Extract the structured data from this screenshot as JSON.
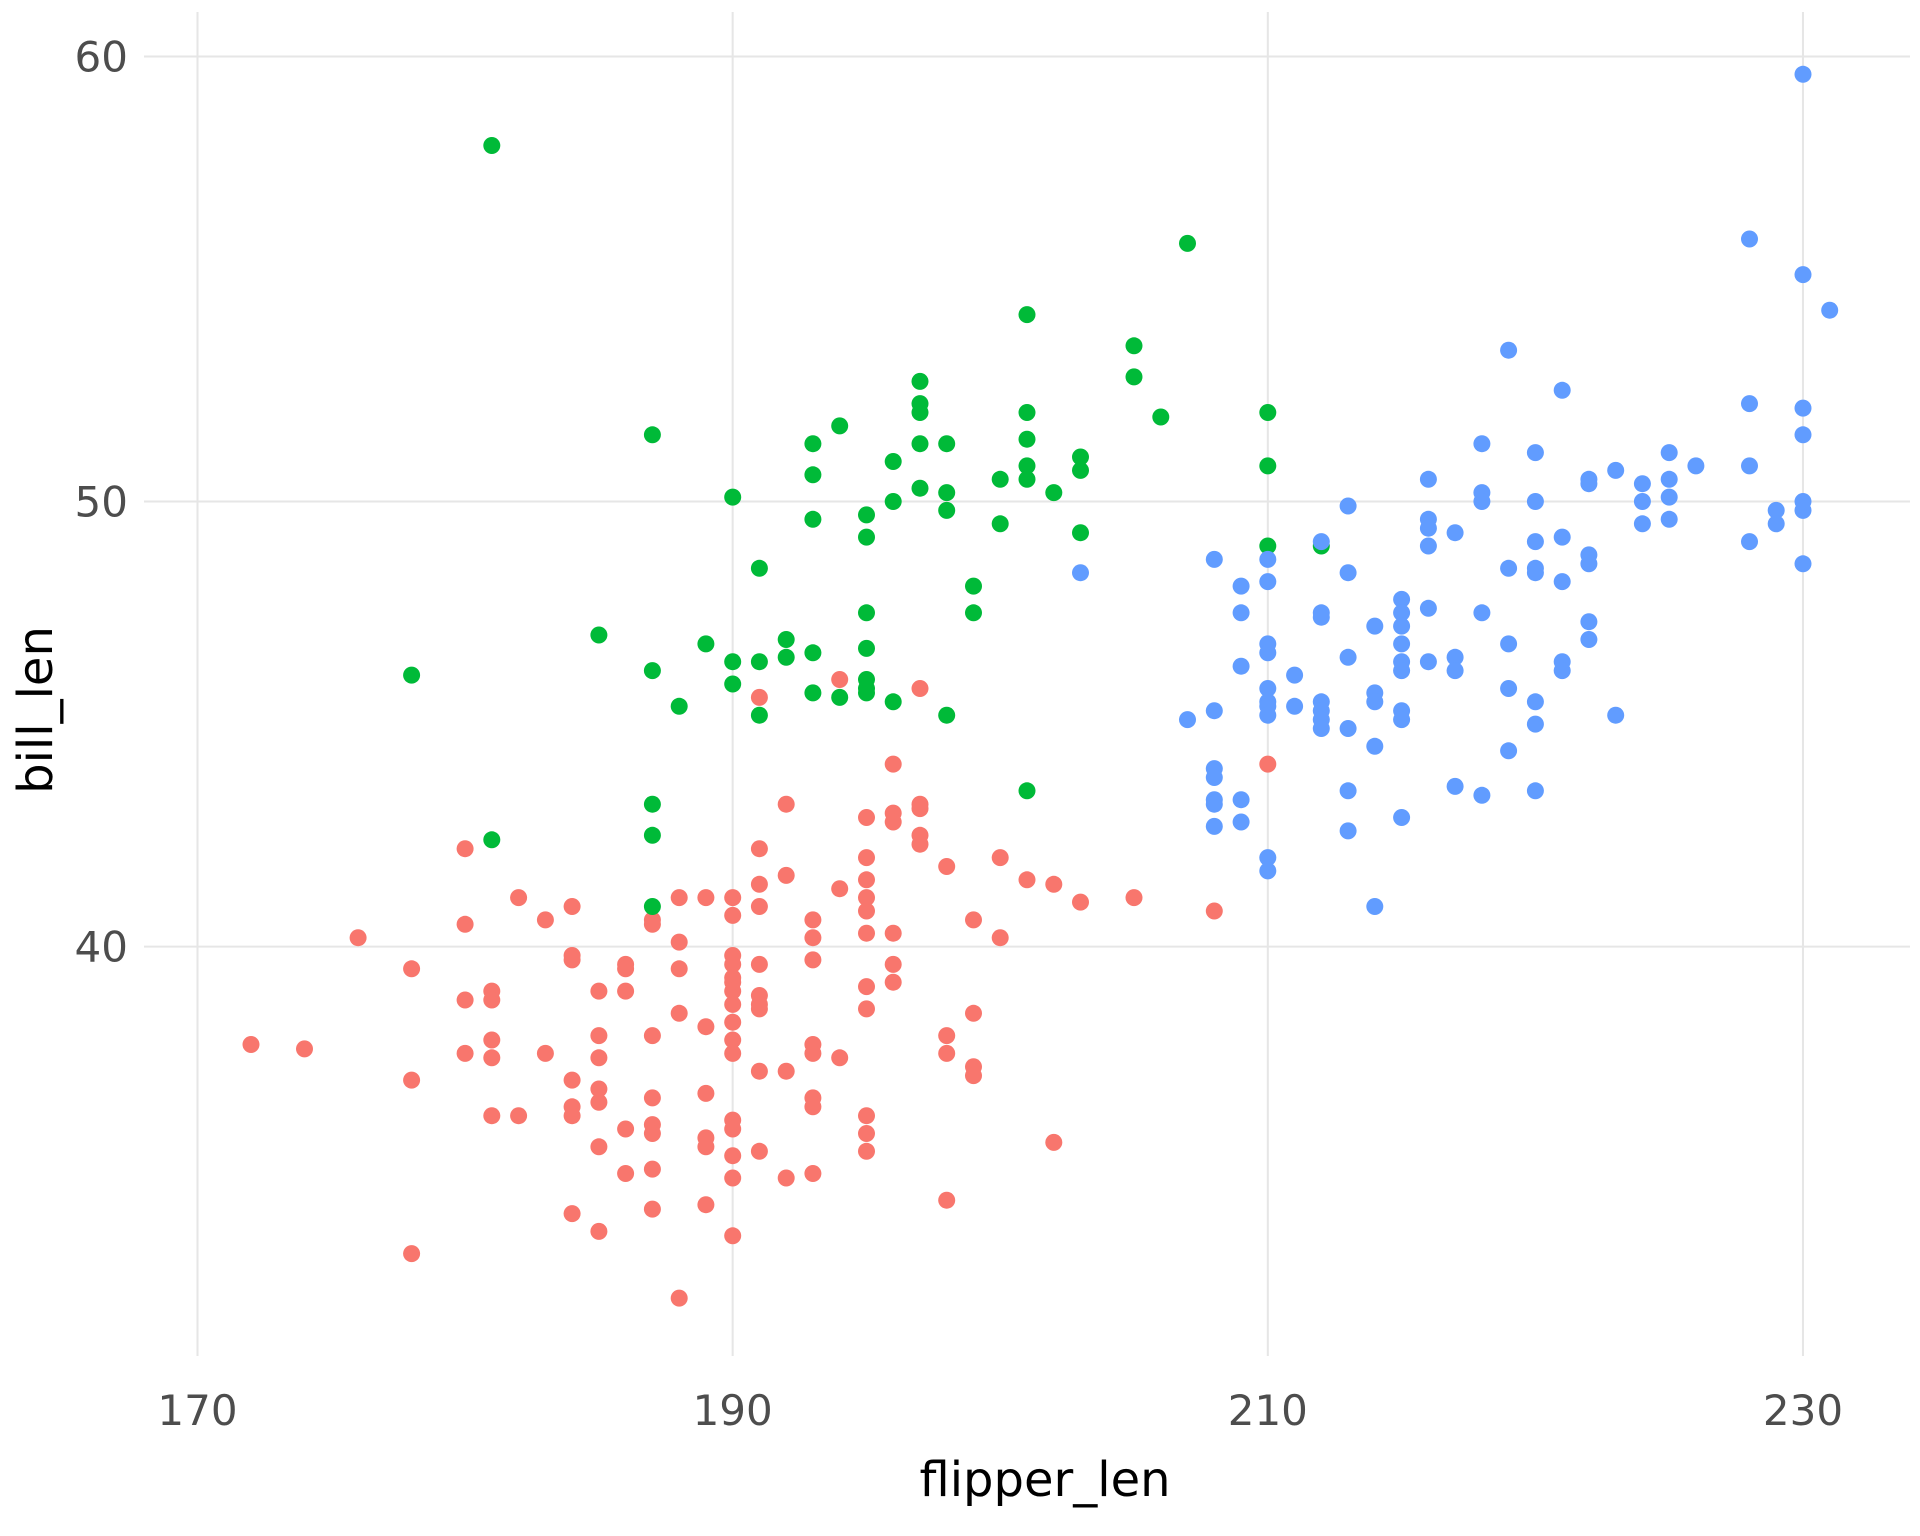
{
  "chart_data": {
    "type": "scatter",
    "title": "",
    "xlabel": "flipper_len",
    "ylabel": "bill_len",
    "xlim": [
      168,
      234
    ],
    "ylim": [
      30.8,
      61
    ],
    "xticks": [
      170,
      190,
      210,
      230
    ],
    "yticks": [
      40,
      50,
      60
    ],
    "xtick_labels": [
      "170",
      "190",
      "210",
      "230"
    ],
    "ytick_labels": [
      "40",
      "50",
      "60"
    ],
    "grid": true,
    "legend": "none",
    "series": [
      {
        "color": "#F8766D",
        "points": [
          [
            172,
            37.8
          ],
          [
            174,
            37.7
          ],
          [
            176,
            40.2
          ],
          [
            178,
            39.5
          ],
          [
            178,
            37.0
          ],
          [
            178,
            33.1
          ],
          [
            180,
            42.2
          ],
          [
            180,
            40.5
          ],
          [
            180,
            38.8
          ],
          [
            180,
            37.6
          ],
          [
            181,
            39.0
          ],
          [
            181,
            38.8
          ],
          [
            181,
            37.9
          ],
          [
            181,
            37.5
          ],
          [
            181,
            36.2
          ],
          [
            182,
            41.1
          ],
          [
            182,
            36.2
          ],
          [
            183,
            40.6
          ],
          [
            183,
            37.6
          ],
          [
            184,
            40.9
          ],
          [
            184,
            39.8
          ],
          [
            184,
            39.7
          ],
          [
            184,
            37.0
          ],
          [
            184,
            36.4
          ],
          [
            184,
            36.2
          ],
          [
            184,
            34.0
          ],
          [
            185,
            39.0
          ],
          [
            185,
            38.0
          ],
          [
            185,
            37.5
          ],
          [
            185,
            36.8
          ],
          [
            185,
            36.5
          ],
          [
            185,
            35.5
          ],
          [
            185,
            33.6
          ],
          [
            186,
            39.6
          ],
          [
            186,
            39.5
          ],
          [
            186,
            39.0
          ],
          [
            186,
            35.9
          ],
          [
            186,
            34.9
          ],
          [
            187,
            40.6
          ],
          [
            187,
            40.5
          ],
          [
            187,
            38.0
          ],
          [
            187,
            36.6
          ],
          [
            187,
            36.0
          ],
          [
            187,
            35.8
          ],
          [
            187,
            35.0
          ],
          [
            187,
            34.1
          ],
          [
            188,
            41.1
          ],
          [
            188,
            40.1
          ],
          [
            188,
            39.5
          ],
          [
            188,
            38.5
          ],
          [
            188,
            32.1
          ],
          [
            189,
            41.1
          ],
          [
            189,
            38.2
          ],
          [
            189,
            36.7
          ],
          [
            189,
            35.7
          ],
          [
            189,
            35.5
          ],
          [
            189,
            34.2
          ],
          [
            190,
            41.1
          ],
          [
            190,
            40.7
          ],
          [
            190,
            39.8
          ],
          [
            190,
            39.6
          ],
          [
            190,
            39.3
          ],
          [
            190,
            39.2
          ],
          [
            190,
            39.0
          ],
          [
            190,
            38.7
          ],
          [
            190,
            38.3
          ],
          [
            190,
            37.9
          ],
          [
            190,
            37.6
          ],
          [
            190,
            36.1
          ],
          [
            190,
            35.9
          ],
          [
            190,
            35.3
          ],
          [
            190,
            34.8
          ],
          [
            190,
            33.5
          ],
          [
            191,
            45.6
          ],
          [
            191,
            42.2
          ],
          [
            191,
            41.4
          ],
          [
            191,
            40.9
          ],
          [
            191,
            39.6
          ],
          [
            191,
            38.9
          ],
          [
            191,
            38.7
          ],
          [
            191,
            38.6
          ],
          [
            191,
            37.2
          ],
          [
            191,
            35.4
          ],
          [
            192,
            43.2
          ],
          [
            192,
            41.6
          ],
          [
            192,
            37.2
          ],
          [
            192,
            34.8
          ],
          [
            193,
            40.6
          ],
          [
            193,
            40.2
          ],
          [
            193,
            39.7
          ],
          [
            193,
            37.8
          ],
          [
            193,
            37.6
          ],
          [
            193,
            36.6
          ],
          [
            193,
            36.4
          ],
          [
            193,
            34.9
          ],
          [
            194,
            46.0
          ],
          [
            194,
            41.3
          ],
          [
            194,
            37.5
          ],
          [
            195,
            42.9
          ],
          [
            195,
            42.0
          ],
          [
            195,
            41.5
          ],
          [
            195,
            41.1
          ],
          [
            195,
            40.8
          ],
          [
            195,
            40.3
          ],
          [
            195,
            39.1
          ],
          [
            195,
            38.6
          ],
          [
            195,
            36.2
          ],
          [
            195,
            35.8
          ],
          [
            195,
            35.4
          ],
          [
            196,
            44.1
          ],
          [
            196,
            43.0
          ],
          [
            196,
            42.8
          ],
          [
            196,
            40.3
          ],
          [
            196,
            39.6
          ],
          [
            196,
            39.2
          ],
          [
            197,
            45.8
          ],
          [
            197,
            43.2
          ],
          [
            197,
            43.1
          ],
          [
            197,
            42.5
          ],
          [
            197,
            42.3
          ],
          [
            198,
            41.8
          ],
          [
            198,
            38.0
          ],
          [
            198,
            37.6
          ],
          [
            198,
            34.3
          ],
          [
            199,
            40.6
          ],
          [
            199,
            38.5
          ],
          [
            199,
            37.3
          ],
          [
            199,
            37.1
          ],
          [
            200,
            42.0
          ],
          [
            200,
            40.2
          ],
          [
            201,
            41.5
          ],
          [
            202,
            41.4
          ],
          [
            202,
            35.6
          ],
          [
            203,
            41.0
          ],
          [
            205,
            41.1
          ],
          [
            208,
            40.8
          ],
          [
            210,
            44.1
          ]
        ]
      },
      {
        "color": "#00BA38",
        "points": [
          [
            178,
            46.1
          ],
          [
            181,
            58.0
          ],
          [
            181,
            42.4
          ],
          [
            185,
            47.0
          ],
          [
            187,
            51.5
          ],
          [
            187,
            46.2
          ],
          [
            187,
            43.2
          ],
          [
            187,
            42.5
          ],
          [
            187,
            40.9
          ],
          [
            188,
            45.4
          ],
          [
            189,
            46.8
          ],
          [
            190,
            50.1
          ],
          [
            190,
            46.4
          ],
          [
            190,
            45.9
          ],
          [
            191,
            48.5
          ],
          [
            191,
            46.4
          ],
          [
            191,
            45.2
          ],
          [
            192,
            46.9
          ],
          [
            192,
            46.5
          ],
          [
            193,
            51.3
          ],
          [
            193,
            50.6
          ],
          [
            193,
            49.6
          ],
          [
            193,
            46.6
          ],
          [
            193,
            45.7
          ],
          [
            194,
            51.7
          ],
          [
            194,
            45.6
          ],
          [
            195,
            49.7
          ],
          [
            195,
            49.2
          ],
          [
            195,
            47.5
          ],
          [
            195,
            46.7
          ],
          [
            195,
            46.0
          ],
          [
            195,
            45.8
          ],
          [
            195,
            45.7
          ],
          [
            196,
            50.9
          ],
          [
            196,
            50.0
          ],
          [
            196,
            45.5
          ],
          [
            197,
            52.7
          ],
          [
            197,
            52.2
          ],
          [
            197,
            52.0
          ],
          [
            197,
            51.3
          ],
          [
            197,
            50.3
          ],
          [
            198,
            51.3
          ],
          [
            198,
            50.2
          ],
          [
            198,
            49.8
          ],
          [
            198,
            45.2
          ],
          [
            199,
            48.1
          ],
          [
            199,
            47.5
          ],
          [
            200,
            50.5
          ],
          [
            200,
            49.5
          ],
          [
            201,
            54.2
          ],
          [
            201,
            52.0
          ],
          [
            201,
            51.4
          ],
          [
            201,
            50.8
          ],
          [
            201,
            50.5
          ],
          [
            201,
            43.5
          ],
          [
            202,
            50.2
          ],
          [
            203,
            51.0
          ],
          [
            203,
            50.7
          ],
          [
            203,
            49.3
          ],
          [
            205,
            53.5
          ],
          [
            205,
            52.8
          ],
          [
            206,
            51.9
          ],
          [
            207,
            55.8
          ],
          [
            210,
            52.0
          ],
          [
            210,
            50.8
          ],
          [
            210,
            49.0
          ],
          [
            212,
            49.0
          ]
        ]
      },
      {
        "color": "#619CFF",
        "points": [
          [
            203,
            48.4
          ],
          [
            207,
            45.1
          ],
          [
            208,
            48.7
          ],
          [
            208,
            45.3
          ],
          [
            208,
            44.0
          ],
          [
            208,
            43.8
          ],
          [
            208,
            43.3
          ],
          [
            208,
            43.2
          ],
          [
            208,
            42.7
          ],
          [
            209,
            48.1
          ],
          [
            209,
            47.5
          ],
          [
            209,
            46.3
          ],
          [
            209,
            43.3
          ],
          [
            209,
            42.8
          ],
          [
            210,
            48.7
          ],
          [
            210,
            48.2
          ],
          [
            210,
            46.8
          ],
          [
            210,
            46.6
          ],
          [
            210,
            45.8
          ],
          [
            210,
            45.5
          ],
          [
            210,
            45.4
          ],
          [
            210,
            45.2
          ],
          [
            210,
            42.0
          ],
          [
            210,
            41.7
          ],
          [
            211,
            46.1
          ],
          [
            211,
            45.4
          ],
          [
            212,
            49.1
          ],
          [
            212,
            47.5
          ],
          [
            212,
            47.4
          ],
          [
            212,
            45.5
          ],
          [
            212,
            45.3
          ],
          [
            212,
            45.1
          ],
          [
            212,
            44.9
          ],
          [
            213,
            49.9
          ],
          [
            213,
            48.4
          ],
          [
            213,
            46.5
          ],
          [
            213,
            44.9
          ],
          [
            213,
            43.5
          ],
          [
            213,
            42.6
          ],
          [
            214,
            47.2
          ],
          [
            214,
            45.7
          ],
          [
            214,
            45.5
          ],
          [
            214,
            44.5
          ],
          [
            214,
            40.9
          ],
          [
            215,
            47.8
          ],
          [
            215,
            47.5
          ],
          [
            215,
            47.2
          ],
          [
            215,
            46.8
          ],
          [
            215,
            46.4
          ],
          [
            215,
            46.2
          ],
          [
            215,
            45.3
          ],
          [
            215,
            45.1
          ],
          [
            215,
            42.9
          ],
          [
            216,
            50.5
          ],
          [
            216,
            49.6
          ],
          [
            216,
            49.4
          ],
          [
            216,
            49.0
          ],
          [
            216,
            47.6
          ],
          [
            216,
            46.4
          ],
          [
            217,
            49.3
          ],
          [
            217,
            46.5
          ],
          [
            217,
            46.2
          ],
          [
            217,
            43.6
          ],
          [
            218,
            51.3
          ],
          [
            218,
            50.2
          ],
          [
            218,
            50.0
          ],
          [
            218,
            47.5
          ],
          [
            218,
            43.4
          ],
          [
            219,
            53.4
          ],
          [
            219,
            48.5
          ],
          [
            219,
            46.8
          ],
          [
            219,
            45.8
          ],
          [
            219,
            44.4
          ],
          [
            220,
            51.1
          ],
          [
            220,
            50.0
          ],
          [
            220,
            49.1
          ],
          [
            220,
            48.5
          ],
          [
            220,
            48.4
          ],
          [
            220,
            45.5
          ],
          [
            220,
            45.0
          ],
          [
            220,
            43.5
          ],
          [
            221,
            52.5
          ],
          [
            221,
            49.2
          ],
          [
            221,
            48.2
          ],
          [
            221,
            46.4
          ],
          [
            221,
            46.2
          ],
          [
            222,
            50.5
          ],
          [
            222,
            50.4
          ],
          [
            222,
            48.8
          ],
          [
            222,
            48.6
          ],
          [
            222,
            47.3
          ],
          [
            222,
            46.9
          ],
          [
            223,
            50.7
          ],
          [
            223,
            45.2
          ],
          [
            224,
            50.4
          ],
          [
            224,
            50.0
          ],
          [
            224,
            49.5
          ],
          [
            225,
            51.1
          ],
          [
            225,
            50.5
          ],
          [
            225,
            50.1
          ],
          [
            225,
            49.6
          ],
          [
            226,
            50.8
          ],
          [
            228,
            55.9
          ],
          [
            228,
            52.2
          ],
          [
            228,
            50.8
          ],
          [
            228,
            49.1
          ],
          [
            229,
            49.8
          ],
          [
            229,
            49.5
          ],
          [
            230,
            59.6
          ],
          [
            230,
            55.1
          ],
          [
            230,
            52.1
          ],
          [
            230,
            51.5
          ],
          [
            230,
            50.0
          ],
          [
            230,
            49.8
          ],
          [
            230,
            48.6
          ],
          [
            231,
            54.3
          ]
        ]
      }
    ]
  }
}
